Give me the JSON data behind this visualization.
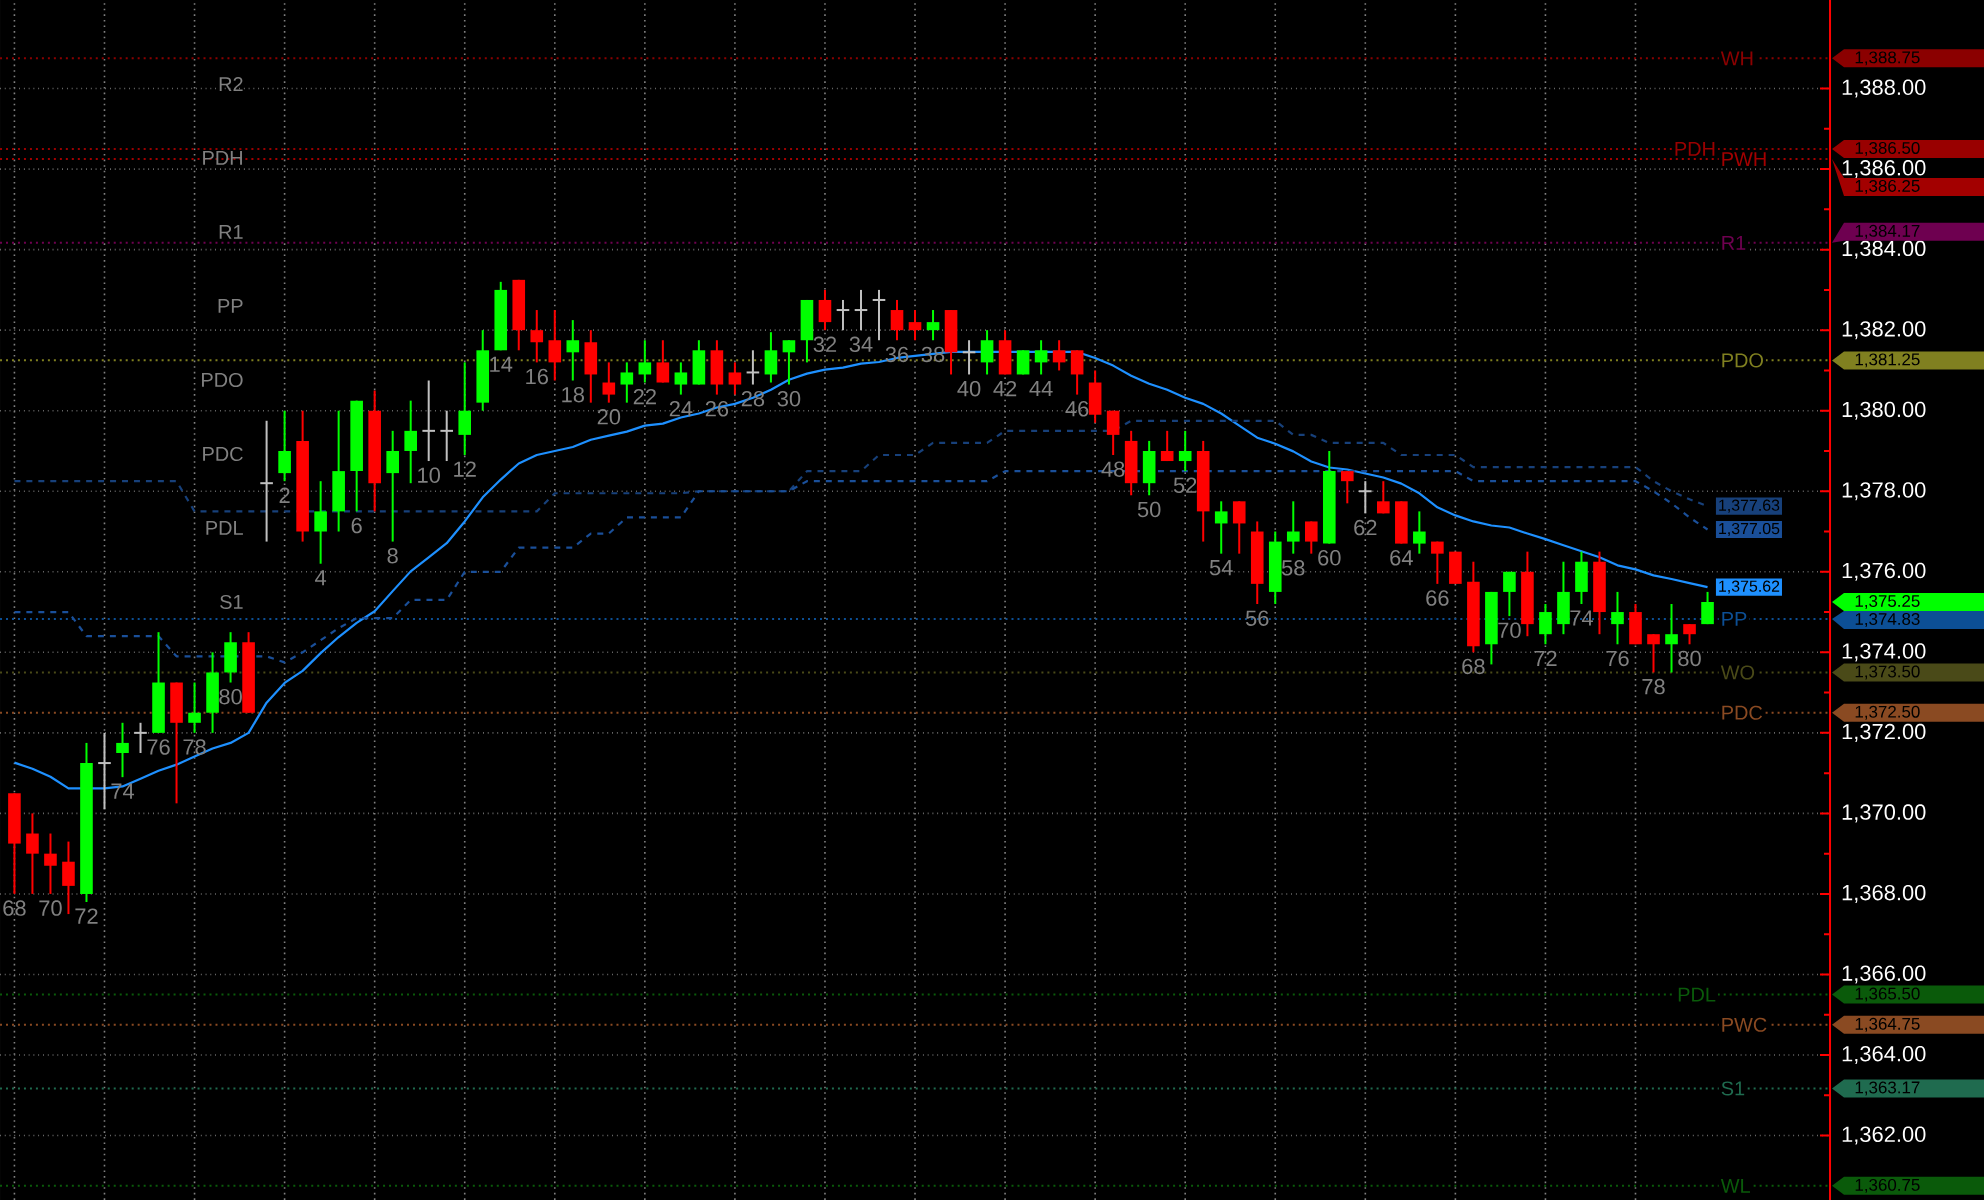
{
  "chart_data": {
    "type": "candlestick",
    "grid": true,
    "categories": [
      "68",
      null,
      "70",
      null,
      "72",
      null,
      "74",
      null,
      "76",
      null,
      "78",
      null,
      "80",
      null,
      null,
      "2",
      null,
      "4",
      null,
      "6",
      null,
      "8",
      null,
      "10",
      null,
      "12",
      null,
      "14",
      null,
      "16",
      null,
      "18",
      null,
      "20",
      null,
      "22",
      null,
      "24",
      null,
      "26",
      null,
      "28",
      null,
      "30",
      null,
      "32",
      null,
      "34",
      null,
      "36",
      null,
      "38",
      null,
      "40",
      null,
      "42",
      null,
      "44",
      null,
      "46",
      null,
      "48",
      null,
      "50",
      null,
      "52",
      null,
      "54",
      null,
      "56",
      null,
      "58",
      null,
      "60",
      null,
      "62",
      null,
      "64",
      null,
      "66",
      null,
      "68",
      null,
      "70",
      null,
      "72",
      null,
      "74",
      null,
      "76",
      null,
      "78",
      null,
      "80",
      null
    ],
    "ohlc": [
      [
        1370.5,
        1370.5,
        1368.0,
        1369.25
      ],
      [
        1369.5,
        1370.0,
        1368.0,
        1369.0
      ],
      [
        1369.0,
        1369.5,
        1368.0,
        1368.7
      ],
      [
        1368.8,
        1369.3,
        1367.5,
        1368.2
      ],
      [
        1368.0,
        1371.75,
        1367.8,
        1371.25
      ],
      [
        1371.25,
        1372.0,
        1370.1,
        1371.25
      ],
      [
        1371.5,
        1372.25,
        1370.9,
        1371.75
      ],
      [
        1372.0,
        1372.25,
        1371.5,
        1372.0
      ],
      [
        1372.0,
        1374.5,
        1372.0,
        1373.25
      ],
      [
        1373.25,
        1373.25,
        1370.25,
        1372.25
      ],
      [
        1372.25,
        1373.25,
        1372.0,
        1372.5
      ],
      [
        1372.5,
        1374.0,
        1372.0,
        1373.5
      ],
      [
        1373.5,
        1374.5,
        1373.25,
        1374.25
      ],
      [
        1374.25,
        1374.5,
        1372.5,
        1372.5
      ],
      [
        1378.2,
        1379.75,
        1376.75,
        1378.2
      ],
      [
        1378.45,
        1380.0,
        1378.25,
        1379.0
      ],
      [
        1379.25,
        1380.0,
        1376.75,
        1377.0
      ],
      [
        1377.0,
        1378.25,
        1376.2,
        1377.5
      ],
      [
        1377.5,
        1380.0,
        1377.0,
        1378.5
      ],
      [
        1378.5,
        1380.25,
        1377.5,
        1380.25
      ],
      [
        1380.0,
        1380.5,
        1377.5,
        1378.2
      ],
      [
        1378.45,
        1379.5,
        1376.75,
        1379.0
      ],
      [
        1379.0,
        1380.25,
        1378.2,
        1379.5
      ],
      [
        1379.5,
        1380.75,
        1378.75,
        1379.5
      ],
      [
        1379.5,
        1380.0,
        1378.75,
        1379.5
      ],
      [
        1379.4,
        1381.2,
        1378.9,
        1380.0
      ],
      [
        1380.2,
        1382.0,
        1380.0,
        1381.5
      ],
      [
        1381.5,
        1383.2,
        1381.5,
        1383.0
      ],
      [
        1383.25,
        1383.25,
        1381.5,
        1382.0
      ],
      [
        1382.0,
        1382.5,
        1381.2,
        1381.7
      ],
      [
        1381.75,
        1382.5,
        1380.75,
        1381.2
      ],
      [
        1381.45,
        1382.25,
        1380.75,
        1381.75
      ],
      [
        1381.7,
        1382.0,
        1380.2,
        1380.9
      ],
      [
        1380.7,
        1381.2,
        1380.2,
        1380.4
      ],
      [
        1380.65,
        1381.2,
        1380.2,
        1380.95
      ],
      [
        1380.9,
        1381.75,
        1380.7,
        1381.2
      ],
      [
        1381.2,
        1381.75,
        1380.7,
        1380.7
      ],
      [
        1380.65,
        1381.2,
        1380.4,
        1380.95
      ],
      [
        1380.65,
        1381.75,
        1380.65,
        1381.5
      ],
      [
        1381.5,
        1381.75,
        1380.4,
        1380.65
      ],
      [
        1380.95,
        1381.2,
        1380.4,
        1380.65
      ],
      [
        1380.95,
        1381.5,
        1380.65,
        1380.95
      ],
      [
        1380.9,
        1381.95,
        1380.7,
        1381.5
      ],
      [
        1381.45,
        1381.75,
        1380.65,
        1381.75
      ],
      [
        1381.75,
        1382.75,
        1381.2,
        1382.75
      ],
      [
        1382.75,
        1383.0,
        1382.0,
        1382.2
      ],
      [
        1382.5,
        1382.75,
        1382.0,
        1382.5
      ],
      [
        1382.5,
        1383.0,
        1382.0,
        1382.5
      ],
      [
        1382.75,
        1383.0,
        1381.75,
        1382.75
      ],
      [
        1382.5,
        1382.75,
        1381.75,
        1382.0
      ],
      [
        1382.2,
        1382.5,
        1381.75,
        1382.0
      ],
      [
        1382.0,
        1382.5,
        1381.75,
        1382.2
      ],
      [
        1382.5,
        1382.5,
        1380.9,
        1381.45
      ],
      [
        1381.45,
        1381.75,
        1380.9,
        1381.45
      ],
      [
        1381.2,
        1382.0,
        1380.9,
        1381.75
      ],
      [
        1381.75,
        1382.0,
        1380.9,
        1380.9
      ],
      [
        1380.9,
        1381.5,
        1380.9,
        1381.5
      ],
      [
        1381.2,
        1381.75,
        1380.9,
        1381.5
      ],
      [
        1381.5,
        1381.75,
        1381.0,
        1381.2
      ],
      [
        1381.5,
        1381.5,
        1380.4,
        1380.9
      ],
      [
        1380.7,
        1381.0,
        1379.7,
        1379.9
      ],
      [
        1380.0,
        1380.0,
        1378.9,
        1379.4
      ],
      [
        1379.25,
        1379.5,
        1377.9,
        1378.2
      ],
      [
        1378.2,
        1379.25,
        1377.9,
        1379.0
      ],
      [
        1379.0,
        1379.5,
        1378.75,
        1378.75
      ],
      [
        1378.75,
        1379.5,
        1378.5,
        1379.0
      ],
      [
        1379.0,
        1379.25,
        1376.75,
        1377.5
      ],
      [
        1377.2,
        1377.75,
        1376.45,
        1377.5
      ],
      [
        1377.75,
        1377.75,
        1376.45,
        1377.2
      ],
      [
        1377.0,
        1377.25,
        1375.2,
        1375.7
      ],
      [
        1375.5,
        1377.0,
        1375.2,
        1376.75
      ],
      [
        1376.75,
        1377.75,
        1376.45,
        1377.0
      ],
      [
        1377.25,
        1377.25,
        1376.45,
        1376.75
      ],
      [
        1376.7,
        1379.0,
        1376.7,
        1378.5
      ],
      [
        1378.5,
        1378.5,
        1377.7,
        1378.25
      ],
      [
        1378.0,
        1378.25,
        1377.45,
        1378.0
      ],
      [
        1377.75,
        1378.25,
        1377.45,
        1377.45
      ],
      [
        1377.75,
        1377.75,
        1376.7,
        1376.7
      ],
      [
        1376.7,
        1377.5,
        1376.45,
        1377.0
      ],
      [
        1376.75,
        1376.75,
        1375.7,
        1376.45
      ],
      [
        1376.5,
        1376.5,
        1375.7,
        1375.7
      ],
      [
        1375.75,
        1376.25,
        1374.0,
        1374.15
      ],
      [
        1374.2,
        1375.5,
        1373.7,
        1375.5
      ],
      [
        1375.5,
        1376.0,
        1374.9,
        1376.0
      ],
      [
        1376.0,
        1376.5,
        1374.4,
        1374.7
      ],
      [
        1374.45,
        1375.2,
        1374.2,
        1375.0
      ],
      [
        1374.7,
        1376.25,
        1374.45,
        1375.5
      ],
      [
        1375.5,
        1376.5,
        1375.2,
        1376.25
      ],
      [
        1376.25,
        1376.5,
        1374.45,
        1375.0
      ],
      [
        1374.7,
        1375.5,
        1374.2,
        1375.0
      ],
      [
        1375.0,
        1375.2,
        1374.2,
        1374.2
      ],
      [
        1374.45,
        1374.45,
        1373.5,
        1374.2
      ],
      [
        1374.2,
        1375.2,
        1373.5,
        1374.45
      ],
      [
        1374.7,
        1374.7,
        1374.2,
        1374.45
      ],
      [
        1374.7,
        1375.5,
        1374.7,
        1375.25
      ]
    ],
    "colors": [
      "#ff0000",
      "#ff0000",
      "#ff0000",
      "#ff0000",
      "#00ff00",
      "#c0c0c0",
      "#00ff00",
      "#c0c0c0",
      "#00ff00",
      "#ff0000",
      "#00ff00",
      "#00ff00",
      "#00ff00",
      "#ff0000",
      "#c0c0c0",
      "#00ff00",
      "#ff0000",
      "#00ff00",
      "#00ff00",
      "#00ff00",
      "#ff0000",
      "#00ff00",
      "#00ff00",
      "#c0c0c0",
      "#c0c0c0",
      "#00ff00",
      "#00ff00",
      "#00ff00",
      "#ff0000",
      "#ff0000",
      "#ff0000",
      "#00ff00",
      "#ff0000",
      "#ff0000",
      "#00ff00",
      "#00ff00",
      "#ff0000",
      "#00ff00",
      "#00ff00",
      "#ff0000",
      "#ff0000",
      "#c0c0c0",
      "#00ff00",
      "#00ff00",
      "#00ff00",
      "#ff0000",
      "#c0c0c0",
      "#c0c0c0",
      "#c0c0c0",
      "#ff0000",
      "#ff0000",
      "#00ff00",
      "#ff0000",
      "#c0c0c0",
      "#00ff00",
      "#ff0000",
      "#00ff00",
      "#00ff00",
      "#ff0000",
      "#ff0000",
      "#ff0000",
      "#ff0000",
      "#ff0000",
      "#00ff00",
      "#ff0000",
      "#00ff00",
      "#ff0000",
      "#00ff00",
      "#ff0000",
      "#ff0000",
      "#00ff00",
      "#00ff00",
      "#ff0000",
      "#00ff00",
      "#ff0000",
      "#c0c0c0",
      "#ff0000",
      "#ff0000",
      "#00ff00",
      "#ff0000",
      "#ff0000",
      "#ff0000",
      "#00ff00",
      "#00ff00",
      "#ff0000",
      "#00ff00",
      "#00ff00",
      "#00ff00",
      "#ff0000",
      "#00ff00",
      "#ff0000",
      "#ff0000",
      "#00ff00",
      "#ff0000",
      "#00ff00"
    ],
    "value_labels": [
      null,
      null,
      null,
      null,
      null,
      null,
      null,
      null,
      null,
      null,
      null,
      null,
      null,
      null,
      null,
      null,
      null,
      null,
      null,
      null,
      null,
      null,
      null,
      null,
      null,
      null,
      null,
      null,
      null,
      null,
      null,
      null,
      null,
      null,
      null,
      null,
      null,
      null,
      null,
      null,
      null,
      null,
      null,
      null,
      null,
      null,
      null,
      null,
      null,
      null,
      null,
      null,
      null,
      null,
      null,
      null,
      null,
      null,
      null,
      null,
      null,
      null,
      null,
      null,
      null,
      null,
      null,
      null,
      null,
      null,
      null,
      null,
      null,
      null,
      null,
      null,
      null,
      null,
      null,
      null,
      null,
      null,
      null,
      null,
      null,
      null,
      null,
      null,
      null,
      null,
      null,
      null,
      null,
      null,
      "1,375.25"
    ],
    "series": [
      {
        "type": "line",
        "color": "#1e90ff",
        "line_style": "solid",
        "values": [
          1371.26,
          1371.11,
          1370.91,
          1370.62,
          1370.62,
          1370.62,
          1370.67,
          1370.86,
          1371.06,
          1371.21,
          1371.41,
          1371.61,
          1371.75,
          1372.0,
          1372.75,
          1373.24,
          1373.54,
          1373.98,
          1374.38,
          1374.73,
          1375.02,
          1375.52,
          1376.01,
          1376.36,
          1376.71,
          1377.25,
          1377.85,
          1378.29,
          1378.69,
          1378.9,
          1379.0,
          1379.1,
          1379.28,
          1379.38,
          1379.48,
          1379.63,
          1379.68,
          1379.83,
          1379.93,
          1380.08,
          1380.17,
          1380.32,
          1380.52,
          1380.77,
          1380.92,
          1381.02,
          1381.07,
          1381.17,
          1381.21,
          1381.31,
          1381.36,
          1381.41,
          1381.46,
          1381.46,
          1381.46,
          1381.46,
          1381.46,
          1381.46,
          1381.46,
          1381.46,
          1381.31,
          1381.12,
          1380.87,
          1380.67,
          1380.52,
          1380.32,
          1380.17,
          1379.93,
          1379.63,
          1379.33,
          1379.18,
          1378.99,
          1378.74,
          1378.59,
          1378.54,
          1378.44,
          1378.34,
          1378.19,
          1377.95,
          1377.6,
          1377.4,
          1377.25,
          1377.15,
          1377.1,
          1376.95,
          1376.81,
          1376.66,
          1376.51,
          1376.36,
          1376.16,
          1376.06,
          1375.91,
          1375.82,
          1375.72,
          1375.62
        ],
        "value_labels": [
          null,
          null,
          null,
          null,
          null,
          null,
          null,
          null,
          null,
          null,
          null,
          null,
          null,
          null,
          null,
          null,
          null,
          null,
          null,
          null,
          null,
          null,
          null,
          null,
          null,
          null,
          null,
          null,
          null,
          null,
          null,
          null,
          null,
          null,
          null,
          null,
          null,
          null,
          null,
          null,
          null,
          null,
          null,
          null,
          null,
          null,
          null,
          null,
          null,
          null,
          null,
          null,
          null,
          null,
          null,
          null,
          null,
          null,
          null,
          null,
          null,
          null,
          null,
          null,
          null,
          null,
          null,
          null,
          null,
          null,
          null,
          null,
          null,
          null,
          null,
          null,
          null,
          null,
          null,
          null,
          null,
          null,
          null,
          null,
          null,
          null,
          null,
          null,
          null,
          null,
          null,
          null,
          null,
          null,
          "1,375.62"
        ]
      },
      {
        "type": "line",
        "color": "#17407a",
        "line_style": "dashed",
        "values": [
          1378.25,
          1378.25,
          1378.25,
          1378.25,
          1378.25,
          1378.25,
          1378.25,
          1378.25,
          1378.25,
          1378.25,
          1377.5,
          1377.5,
          1377.5,
          1377.5,
          1377.5,
          1377.5,
          1377.5,
          1377.5,
          1377.5,
          1377.5,
          1377.5,
          1377.5,
          1377.5,
          1377.5,
          1377.5,
          1377.5,
          1377.5,
          1377.5,
          1377.5,
          1377.5,
          1377.95,
          1377.95,
          1377.95,
          1377.95,
          1377.95,
          1377.95,
          1377.95,
          1377.95,
          1378.0,
          1378.0,
          1378.0,
          1378.0,
          1378.0,
          1378.0,
          1378.5,
          1378.5,
          1378.5,
          1378.5,
          1378.9,
          1378.9,
          1378.9,
          1379.2,
          1379.2,
          1379.2,
          1379.2,
          1379.5,
          1379.5,
          1379.5,
          1379.5,
          1379.5,
          1379.5,
          1379.5,
          1379.75,
          1379.75,
          1379.75,
          1379.75,
          1379.75,
          1379.75,
          1379.75,
          1379.75,
          1379.75,
          1379.4,
          1379.4,
          1379.2,
          1379.2,
          1379.2,
          1379.2,
          1378.9,
          1378.9,
          1378.9,
          1378.9,
          1378.6,
          1378.6,
          1378.6,
          1378.6,
          1378.6,
          1378.6,
          1378.6,
          1378.6,
          1378.6,
          1378.6,
          1378.25,
          1378.0,
          1377.8,
          1377.63
        ],
        "value_labels": [
          null,
          null,
          null,
          null,
          null,
          null,
          null,
          null,
          null,
          null,
          null,
          null,
          null,
          null,
          null,
          null,
          null,
          null,
          null,
          null,
          null,
          null,
          null,
          null,
          null,
          null,
          null,
          null,
          null,
          null,
          null,
          null,
          null,
          null,
          null,
          null,
          null,
          null,
          null,
          null,
          null,
          null,
          null,
          null,
          null,
          null,
          null,
          null,
          null,
          null,
          null,
          null,
          null,
          null,
          null,
          null,
          null,
          null,
          null,
          null,
          null,
          null,
          null,
          null,
          null,
          null,
          null,
          null,
          null,
          null,
          null,
          null,
          null,
          null,
          null,
          null,
          null,
          null,
          null,
          null,
          null,
          null,
          null,
          null,
          null,
          null,
          null,
          null,
          null,
          null,
          null,
          null,
          null,
          null,
          "1,377.63"
        ]
      },
      {
        "type": "line",
        "color": "#1a4f99",
        "line_style": "dashed",
        "values": [
          1375.0,
          1375.0,
          1375.0,
          1375.0,
          1374.4,
          1374.4,
          1374.4,
          1374.4,
          1374.4,
          1373.9,
          1373.9,
          1373.9,
          1373.9,
          1373.9,
          1373.9,
          1373.75,
          1374.0,
          1374.3,
          1374.6,
          1374.85,
          1374.85,
          1374.85,
          1375.3,
          1375.3,
          1375.3,
          1376.0,
          1376.0,
          1376.0,
          1376.6,
          1376.6,
          1376.6,
          1376.6,
          1376.95,
          1376.95,
          1377.35,
          1377.35,
          1377.35,
          1377.35,
          1378.0,
          1378.0,
          1378.0,
          1378.0,
          1378.0,
          1378.0,
          1378.25,
          1378.25,
          1378.25,
          1378.25,
          1378.25,
          1378.25,
          1378.25,
          1378.25,
          1378.25,
          1378.25,
          1378.25,
          1378.5,
          1378.5,
          1378.5,
          1378.5,
          1378.5,
          1378.5,
          1378.5,
          1378.5,
          1378.5,
          1378.5,
          1378.5,
          1378.5,
          1378.5,
          1378.5,
          1378.5,
          1378.5,
          1378.5,
          1378.5,
          1378.5,
          1378.5,
          1378.5,
          1378.5,
          1378.5,
          1378.5,
          1378.5,
          1378.5,
          1378.25,
          1378.25,
          1378.25,
          1378.25,
          1378.25,
          1378.25,
          1378.25,
          1378.25,
          1378.25,
          1378.25,
          1378.0,
          1377.7,
          1377.35,
          1377.05
        ],
        "value_labels": [
          null,
          null,
          null,
          null,
          null,
          null,
          null,
          null,
          null,
          null,
          null,
          null,
          null,
          null,
          null,
          null,
          null,
          null,
          null,
          null,
          null,
          null,
          null,
          null,
          null,
          null,
          null,
          null,
          null,
          null,
          null,
          null,
          null,
          null,
          null,
          null,
          null,
          null,
          null,
          null,
          null,
          null,
          null,
          null,
          null,
          null,
          null,
          null,
          null,
          null,
          null,
          null,
          null,
          null,
          null,
          null,
          null,
          null,
          null,
          null,
          null,
          null,
          null,
          null,
          null,
          null,
          null,
          null,
          null,
          null,
          null,
          null,
          null,
          null,
          null,
          null,
          null,
          null,
          null,
          null,
          null,
          null,
          null,
          null,
          null,
          null,
          null,
          null,
          null,
          null,
          null,
          null,
          null,
          null,
          "1,377.05"
        ]
      }
    ],
    "ref_lines": [
      {
        "axis": "y",
        "value": 1388.75,
        "label": "1,388.75",
        "color": "#8b0000",
        "line_style": "dotted"
      },
      {
        "axis": "y",
        "value": 1386.5,
        "label": "1,386.50",
        "color": "#990000",
        "line_style": "dotted"
      },
      {
        "axis": "y",
        "value": 1386.25,
        "label": "1,386.25",
        "color": "#a30000",
        "line_style": "dotted"
      },
      {
        "axis": "y",
        "value": 1384.17,
        "label": "1,384.17",
        "color": "#6e0050",
        "line_style": "dotted"
      },
      {
        "axis": "y",
        "value": 1381.25,
        "label": "1,381.25",
        "color": "#808020",
        "line_style": "dotted"
      },
      {
        "axis": "y",
        "value": 1374.83,
        "label": "1,374.83",
        "color": "#0c4f95",
        "line_style": "dotted"
      },
      {
        "axis": "y",
        "value": 1373.5,
        "label": "1,373.50",
        "color": "#4a4a18",
        "line_style": "dotted"
      },
      {
        "axis": "y",
        "value": 1372.5,
        "label": "1,372.50",
        "color": "#8a4a22",
        "line_style": "dotted"
      },
      {
        "axis": "y",
        "value": 1365.5,
        "label": "1,365.50",
        "color": "#0a5a0a",
        "line_style": "dotted"
      },
      {
        "axis": "y",
        "value": 1364.75,
        "label": "1,364.75",
        "color": "#8a4a22",
        "line_style": "dotted"
      },
      {
        "axis": "y",
        "value": 1363.17,
        "label": "1,363.17",
        "color": "#1f6b4f",
        "line_style": "dotted"
      },
      {
        "axis": "y",
        "value": 1360.75,
        "label": "1,360.75",
        "color": "#0a5a0a",
        "line_style": "dotted"
      }
    ],
    "annotations": [
      "R2",
      "PDH",
      "R1",
      "PP",
      "PDO",
      "PDC",
      "PDL",
      "S1",
      "WH",
      "PDH",
      "PWH",
      "R1",
      "PDO",
      "PP",
      "WO",
      "PDC",
      "PDL",
      "PWC",
      "S1",
      "WL"
    ],
    "ylim": [
      1360.4,
      1390.2
    ],
    "yticks": [
      {
        "value": 1362,
        "label": "1,362.00"
      },
      {
        "value": 1364,
        "label": "1,364.00"
      },
      {
        "value": 1366,
        "label": "1,366.00"
      },
      {
        "value": 1368,
        "label": "1,368.00"
      },
      {
        "value": 1370,
        "label": "1,370.00"
      },
      {
        "value": 1372,
        "label": "1,372.00"
      },
      {
        "value": 1374,
        "label": "1,374.00"
      },
      {
        "value": 1376,
        "label": "1,376.00"
      },
      {
        "value": 1378,
        "label": "1,378.00"
      },
      {
        "value": 1380,
        "label": "1,380.00"
      },
      {
        "value": 1382,
        "label": "1,382.00"
      },
      {
        "value": 1384,
        "label": "1,384.00"
      },
      {
        "value": 1386,
        "label": "1,386.00"
      },
      {
        "value": 1388,
        "label": "1,388.00"
      }
    ]
  }
}
